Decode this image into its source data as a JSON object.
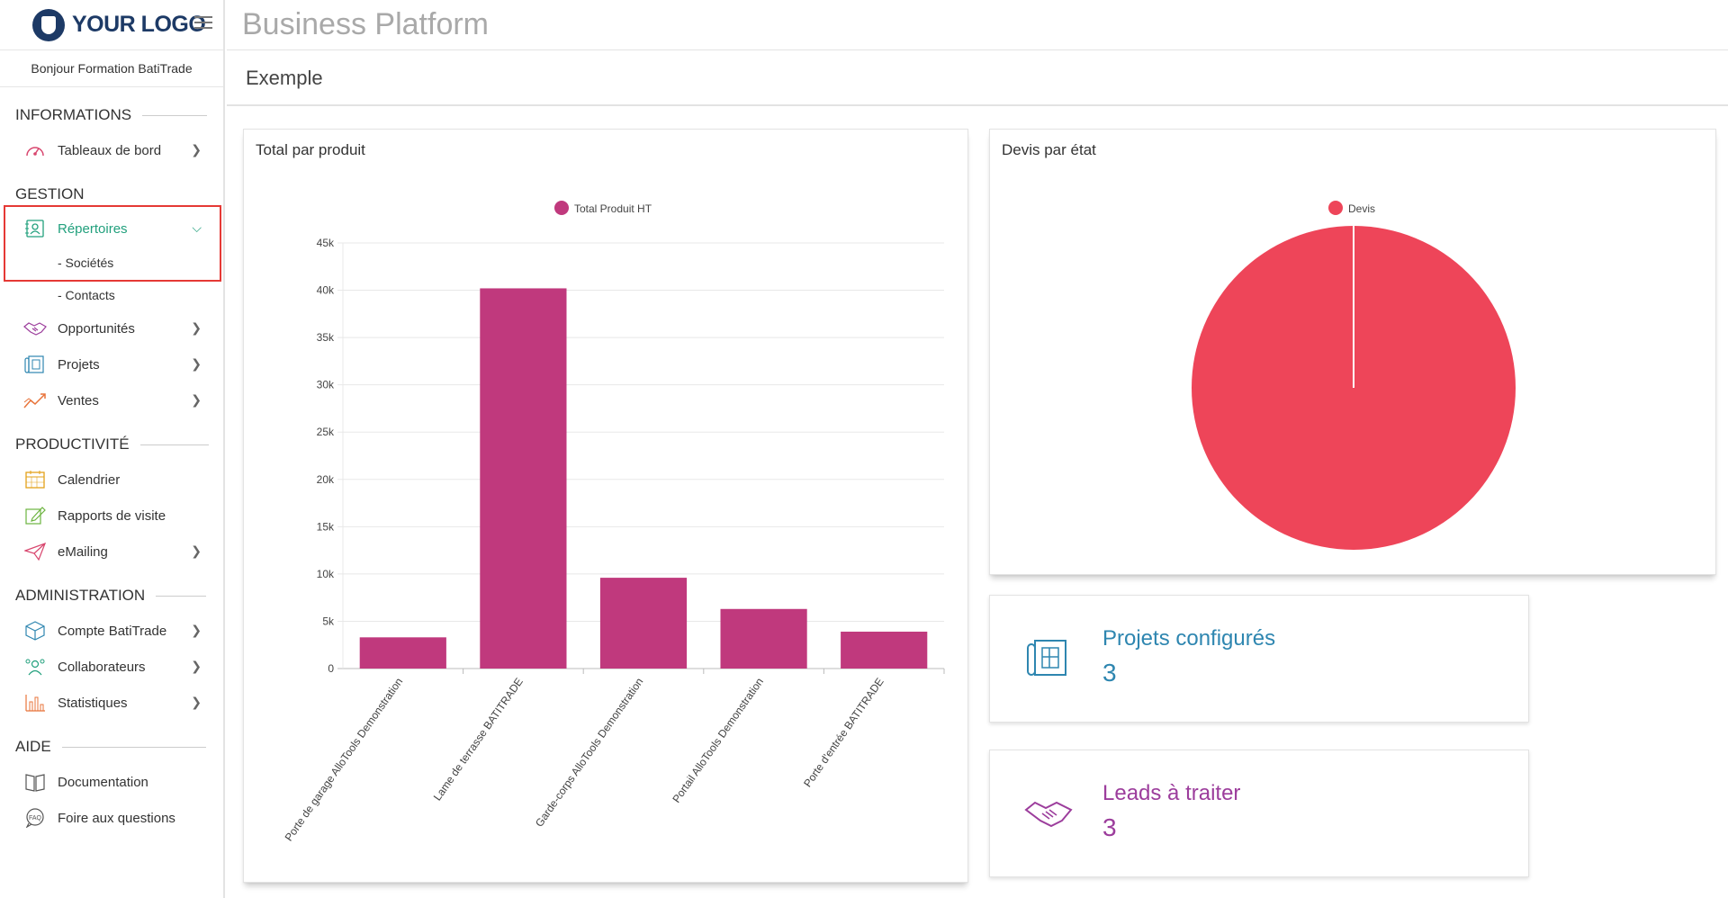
{
  "app": {
    "logo_text": "YOUR LOGO",
    "greeting": "Bonjour Formation BatiTrade",
    "header_title": "Business Platform",
    "page_title": "Exemple"
  },
  "sidebar": {
    "sections": {
      "informations": "INFORMATIONS",
      "gestion": "GESTION",
      "productivite": "PRODUCTIVITÉ",
      "administration": "ADMINISTRATION",
      "aide": "AIDE"
    },
    "items": {
      "tableaux": "Tableaux de bord",
      "repertoires": "Répertoires",
      "societes": "- Sociétés",
      "contacts": "- Contacts",
      "opportunites": "Opportunités",
      "projets": "Projets",
      "ventes": "Ventes",
      "calendrier": "Calendrier",
      "rapports": "Rapports de visite",
      "emailing": "eMailing",
      "compte": "Compte BatiTrade",
      "collaborateurs": "Collaborateurs",
      "statistiques": "Statistiques",
      "documentation": "Documentation",
      "faq": "Foire aux questions"
    }
  },
  "cards": {
    "total_par_produit": "Total par produit",
    "devis_par_etat": "Devis par état",
    "projets_configures": {
      "label": "Projets configurés",
      "value": "3",
      "color": "#2e86b0"
    },
    "leads_a_traiter": {
      "label": "Leads à traiter",
      "value": "3",
      "color": "#9c3d9c"
    }
  },
  "colors": {
    "accent_green": "#22a07d",
    "bar": "#c0397d",
    "pie": "#ee4559",
    "highlight": "#e53935"
  },
  "chart_data": [
    {
      "type": "bar",
      "title": "Total par produit",
      "categories": [
        "Porte de garage AlloTools Demonstration",
        "Lame de terrasse BATITRADE",
        "Garde-corps AlloTools Demonstration",
        "Portail AlloTools Demonstration",
        "Porte d'entrée BATITRADE"
      ],
      "series": [
        {
          "name": "Total Produit HT",
          "values": [
            3300,
            40200,
            9600,
            6300,
            3900
          ]
        }
      ],
      "yticks": [
        "0",
        "5k",
        "10k",
        "15k",
        "20k",
        "25k",
        "30k",
        "35k",
        "40k",
        "45k"
      ],
      "ylim": [
        0,
        45000
      ],
      "grid": true,
      "legend": "top-center"
    },
    {
      "type": "pie",
      "title": "Devis par état",
      "labels": [
        "Devis"
      ],
      "values": [
        100
      ],
      "legend": "top-center"
    }
  ]
}
